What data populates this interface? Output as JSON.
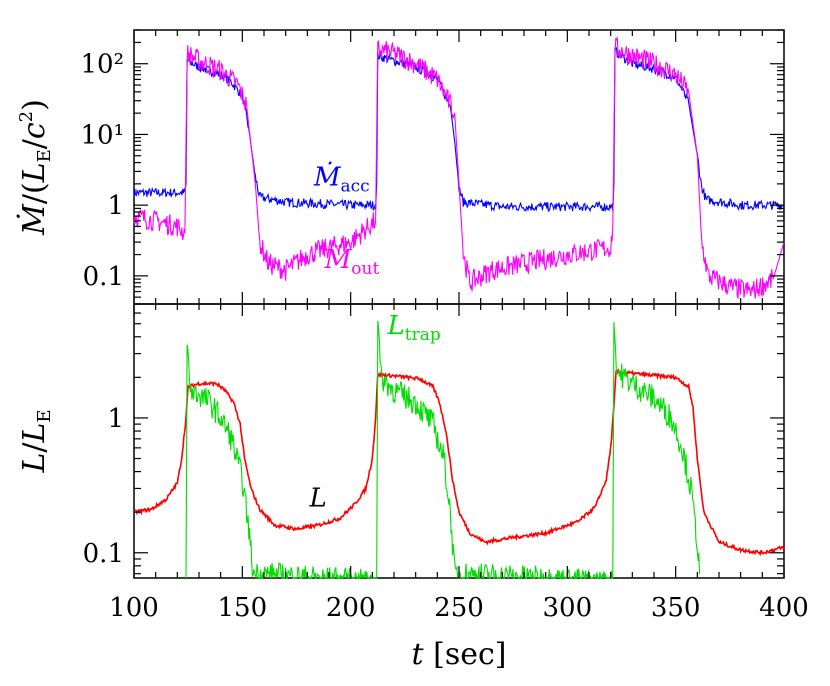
{
  "chart_data": [
    {
      "type": "line",
      "panel": "top",
      "ylabel": "Ṁ/(L_E/c²)",
      "yscale": "log",
      "ylim": [
        0.04,
        300
      ],
      "xlim": [
        100,
        400
      ],
      "yticks": [
        "10²",
        "10¹",
        "1",
        "0.1"
      ],
      "ytick_values": [
        100,
        10,
        1,
        0.1
      ],
      "colors": {
        "acc": "#0000ff",
        "out": "#ff00ff"
      },
      "annotations": [
        {
          "text": "Ṁ_acc",
          "series": "acc",
          "x": 183,
          "y": 1.9
        },
        {
          "text": "Ṁ_out",
          "series": "out",
          "x": 188,
          "y": 0.13
        }
      ],
      "series": [
        {
          "name": "Ṁ_acc",
          "key": "acc",
          "points": [
            [
              100,
              1.5
            ],
            [
              123.5,
              1.5
            ],
            [
              124,
              2
            ],
            [
              124.5,
              110
            ],
            [
              130,
              90
            ],
            [
              140,
              70
            ],
            [
              145,
              55
            ],
            [
              150,
              35
            ],
            [
              153,
              12
            ],
            [
              156,
              2.5
            ],
            [
              158,
              1.3
            ],
            [
              170,
              1.1
            ],
            [
              200,
              1.0
            ],
            [
              211.5,
              1.0
            ],
            [
              212,
              2
            ],
            [
              212.5,
              130
            ],
            [
              220,
              110
            ],
            [
              230,
              90
            ],
            [
              240,
              60
            ],
            [
              246,
              25
            ],
            [
              248,
              8
            ],
            [
              250,
              1.8
            ],
            [
              252,
              1.1
            ],
            [
              270,
              0.95
            ],
            [
              300,
              0.95
            ],
            [
              321,
              0.95
            ],
            [
              321.5,
              2
            ],
            [
              322,
              150
            ],
            [
              330,
              100
            ],
            [
              340,
              85
            ],
            [
              350,
              65
            ],
            [
              356,
              28
            ],
            [
              360,
              5
            ],
            [
              362,
              1.8
            ],
            [
              364,
              1.2
            ],
            [
              380,
              1.0
            ],
            [
              400,
              1.0
            ]
          ]
        },
        {
          "name": "Ṁ_out",
          "key": "out",
          "points": [
            [
              100,
              0.7
            ],
            [
              110,
              0.6
            ],
            [
              120,
              0.5
            ],
            [
              123.5,
              0.4
            ],
            [
              124.5,
              140
            ],
            [
              130,
              110
            ],
            [
              140,
              80
            ],
            [
              148,
              50
            ],
            [
              152,
              25
            ],
            [
              156,
              2
            ],
            [
              158,
              0.3
            ],
            [
              162,
              0.15
            ],
            [
              170,
              0.12
            ],
            [
              180,
              0.2
            ],
            [
              190,
              0.25
            ],
            [
              200,
              0.3
            ],
            [
              211.5,
              0.6
            ],
            [
              212.5,
              160
            ],
            [
              220,
              140
            ],
            [
              230,
              100
            ],
            [
              240,
              60
            ],
            [
              248,
              20
            ],
            [
              250,
              2
            ],
            [
              252,
              0.2
            ],
            [
              255,
              0.08
            ],
            [
              265,
              0.12
            ],
            [
              280,
              0.15
            ],
            [
              300,
              0.2
            ],
            [
              320,
              0.25
            ],
            [
              321,
              0.5
            ],
            [
              322,
              170
            ],
            [
              330,
              130
            ],
            [
              340,
              100
            ],
            [
              350,
              70
            ],
            [
              356,
              40
            ],
            [
              360,
              5
            ],
            [
              362,
              0.3
            ],
            [
              365,
              0.1
            ],
            [
              375,
              0.07
            ],
            [
              385,
              0.06
            ],
            [
              395,
              0.09
            ],
            [
              400,
              0.3
            ]
          ]
        }
      ]
    },
    {
      "type": "line",
      "panel": "bottom",
      "xlabel": "t [sec]",
      "ylabel": "L/L_E",
      "yscale": "log",
      "ylim": [
        0.065,
        7
      ],
      "xlim": [
        100,
        400
      ],
      "xticks": [
        100,
        150,
        200,
        250,
        300,
        350,
        400
      ],
      "yticks": [
        "1",
        "0.1"
      ],
      "ytick_values": [
        1,
        0.1
      ],
      "colors": {
        "L": "#ff0000",
        "trap": "#00dd00"
      },
      "annotations": [
        {
          "text": "L_trap",
          "series": "trap",
          "x": 217,
          "y": 4.2
        },
        {
          "text": "L",
          "series": "L",
          "x": 181,
          "y": 0.22
        }
      ],
      "series": [
        {
          "name": "L",
          "key": "L",
          "points": [
            [
              100,
              0.2
            ],
            [
              108,
              0.21
            ],
            [
              115,
              0.25
            ],
            [
              120,
              0.33
            ],
            [
              122,
              0.5
            ],
            [
              124,
              1.0
            ],
            [
              125,
              1.7
            ],
            [
              130,
              1.8
            ],
            [
              138,
              1.8
            ],
            [
              142,
              1.6
            ],
            [
              146,
              1.3
            ],
            [
              149,
              0.9
            ],
            [
              151,
              0.5
            ],
            [
              154,
              0.3
            ],
            [
              158,
              0.21
            ],
            [
              165,
              0.16
            ],
            [
              175,
              0.15
            ],
            [
              185,
              0.16
            ],
            [
              195,
              0.18
            ],
            [
              202,
              0.23
            ],
            [
              207,
              0.3
            ],
            [
              210,
              0.5
            ],
            [
              211.5,
              1.0
            ],
            [
              212.5,
              2.1
            ],
            [
              220,
              2.05
            ],
            [
              232,
              1.95
            ],
            [
              238,
              1.7
            ],
            [
              241,
              1.3
            ],
            [
              244,
              0.8
            ],
            [
              247,
              0.35
            ],
            [
              250,
              0.2
            ],
            [
              255,
              0.14
            ],
            [
              262,
              0.12
            ],
            [
              275,
              0.13
            ],
            [
              290,
              0.14
            ],
            [
              305,
              0.17
            ],
            [
              313,
              0.22
            ],
            [
              318,
              0.35
            ],
            [
              320,
              0.6
            ],
            [
              321.5,
              1.2
            ],
            [
              322.5,
              2.2
            ],
            [
              335,
              2.1
            ],
            [
              350,
              2.0
            ],
            [
              356,
              1.7
            ],
            [
              358,
              1.2
            ],
            [
              360,
              0.5
            ],
            [
              363,
              0.2
            ],
            [
              370,
              0.12
            ],
            [
              380,
              0.105
            ],
            [
              390,
              0.1
            ],
            [
              400,
              0.11
            ]
          ]
        },
        {
          "name": "L_trap",
          "key": "trap",
          "points": [
            [
              124,
              0.06
            ],
            [
              124.5,
              3.5
            ],
            [
              126,
              1.6
            ],
            [
              130,
              1.5
            ],
            [
              135,
              1.3
            ],
            [
              140,
              1.0
            ],
            [
              145,
              0.7
            ],
            [
              150,
              0.35
            ],
            [
              153,
              0.15
            ],
            [
              155,
              0.07
            ],
            [
              212,
              0.06
            ],
            [
              212.5,
              5.5
            ],
            [
              214,
              2.0
            ],
            [
              220,
              1.6
            ],
            [
              230,
              1.3
            ],
            [
              238,
              0.9
            ],
            [
              243,
              0.5
            ],
            [
              246,
              0.2
            ],
            [
              248,
              0.07
            ],
            [
              321,
              0.06
            ],
            [
              321.5,
              5.0
            ],
            [
              323,
              2.2
            ],
            [
              330,
              1.8
            ],
            [
              340,
              1.4
            ],
            [
              348,
              1.0
            ],
            [
              353,
              0.6
            ],
            [
              357,
              0.3
            ],
            [
              360,
              0.12
            ],
            [
              361,
              0.07
            ]
          ]
        }
      ]
    }
  ]
}
